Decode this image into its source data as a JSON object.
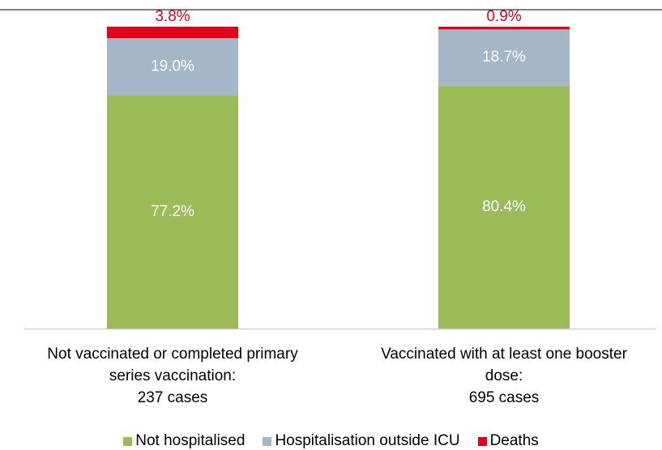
{
  "chart_data": {
    "type": "stacked_bar",
    "categories": [
      "Not vaccinated or completed primary\nseries vaccination:\n237 cases",
      "Vaccinated with at least one booster\ndose:\n695 cases"
    ],
    "series": [
      {
        "name": "Not hospitalised",
        "color": "#9bbb59",
        "values": [
          77.2,
          80.4
        ],
        "value_labels": [
          "77.2%",
          "80.4%"
        ]
      },
      {
        "name": "Hospitalisation outside ICU",
        "color": "#a5b6c7",
        "values": [
          19.0,
          18.7
        ],
        "value_labels": [
          "19.0%",
          "18.7%"
        ]
      },
      {
        "name": "Deaths",
        "color": "#e3001b",
        "values": [
          3.8,
          0.9
        ],
        "value_labels": [
          "3.8%",
          "0.9%"
        ]
      }
    ],
    "ylim": [
      0,
      100
    ]
  }
}
